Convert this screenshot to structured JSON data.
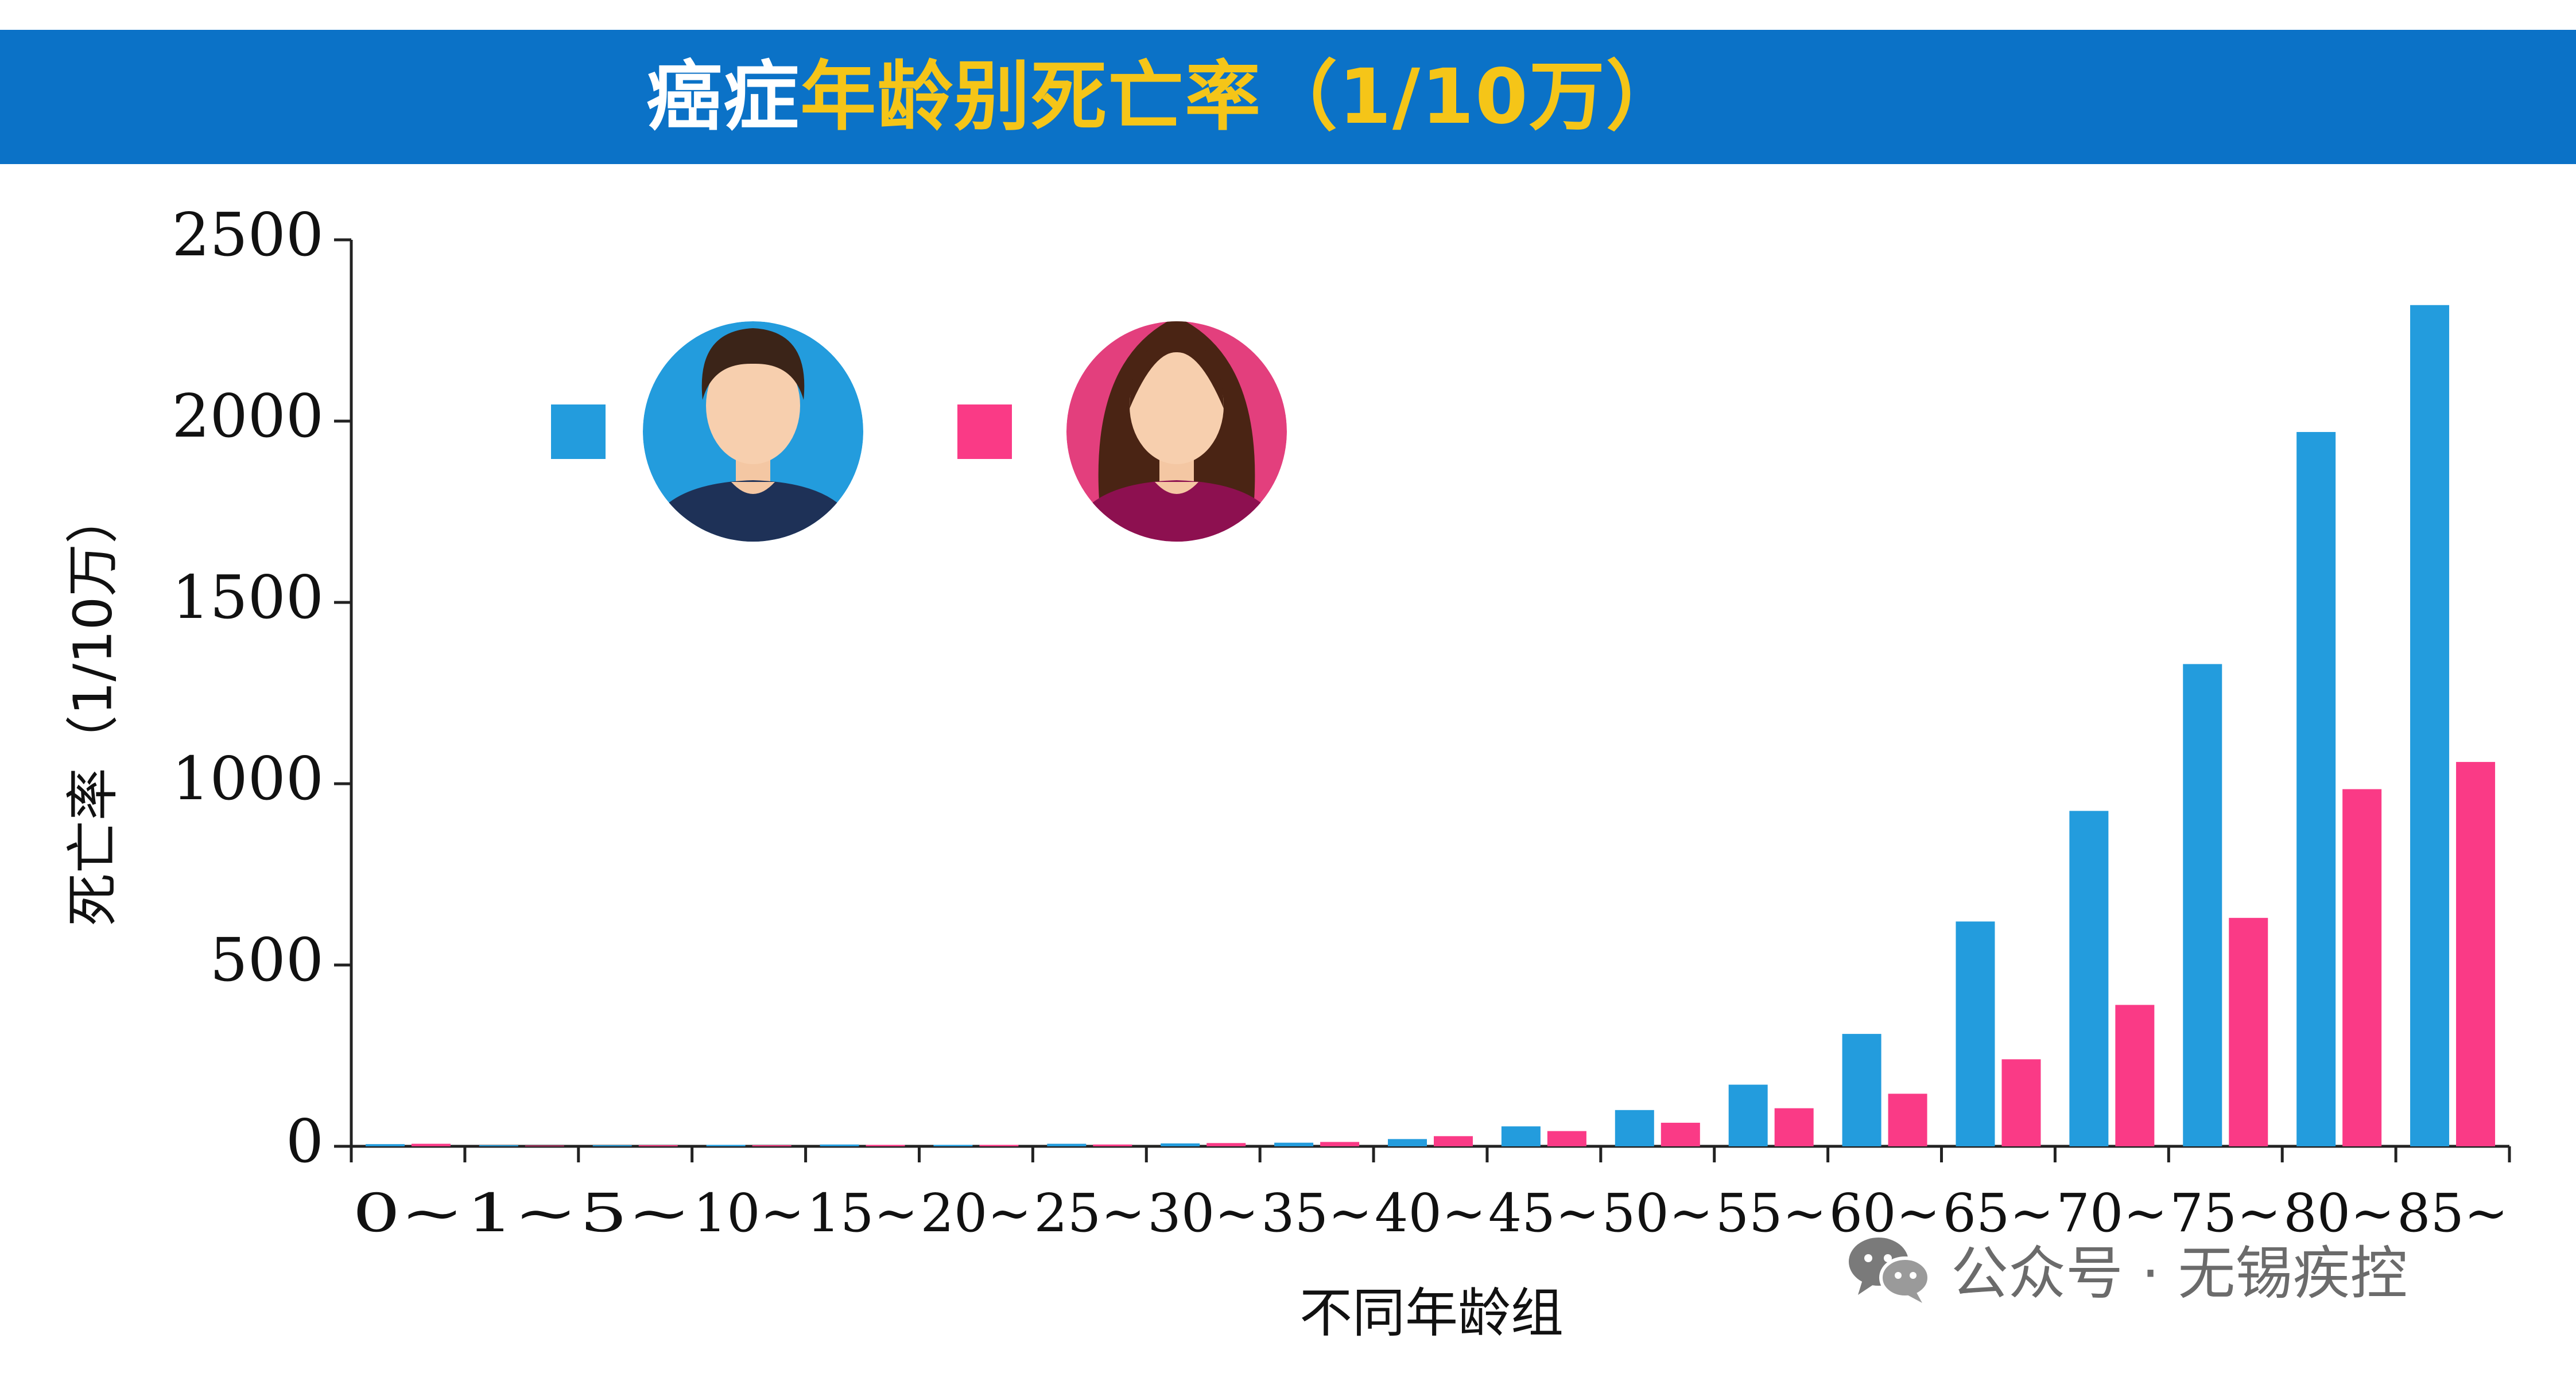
{
  "title": {
    "part1": "癌症",
    "part2": "年龄别死亡率（1/10万）"
  },
  "colors": {
    "male": "#239cdd",
    "female": "#fa3a86",
    "title_band": "#0b72c7",
    "title_highlight": "#f5c518"
  },
  "legend": [
    {
      "icon": "male-avatar-icon",
      "color": "#239cdd"
    },
    {
      "icon": "female-avatar-icon",
      "color": "#fa3a86"
    }
  ],
  "watermark": {
    "icon": "wechat-icon",
    "text": "公众号 · 无锡疾控"
  },
  "chart_data": {
    "type": "bar",
    "title": "癌症年龄别死亡率（1/10万）",
    "xlabel": "不同年龄组",
    "ylabel": "死亡率（1/10万）",
    "ylim": [
      0,
      2500
    ],
    "yticks": [
      "0",
      "500",
      "1000",
      "1500",
      "2000",
      "2500"
    ],
    "categories": [
      "0~",
      "1~",
      "5~",
      "10~",
      "15~",
      "20~",
      "25~",
      "30~",
      "35~",
      "40~",
      "45~",
      "50~",
      "55~",
      "60~",
      "65~",
      "70~",
      "75~",
      "80~",
      "85~"
    ],
    "series": [
      {
        "key": "male",
        "color": "#239cdd",
        "values": [
          6,
          3,
          3,
          4,
          5,
          4,
          7,
          8,
          10,
          20,
          55,
          100,
          170,
          310,
          620,
          925,
          1330,
          1970,
          2320
        ]
      },
      {
        "key": "female",
        "color": "#fa3a86",
        "values": [
          7,
          2,
          3,
          3,
          4,
          4,
          5,
          9,
          12,
          28,
          42,
          65,
          105,
          145,
          240,
          390,
          630,
          985,
          1060
        ]
      }
    ],
    "grid": false,
    "legend_position": "top-left"
  }
}
